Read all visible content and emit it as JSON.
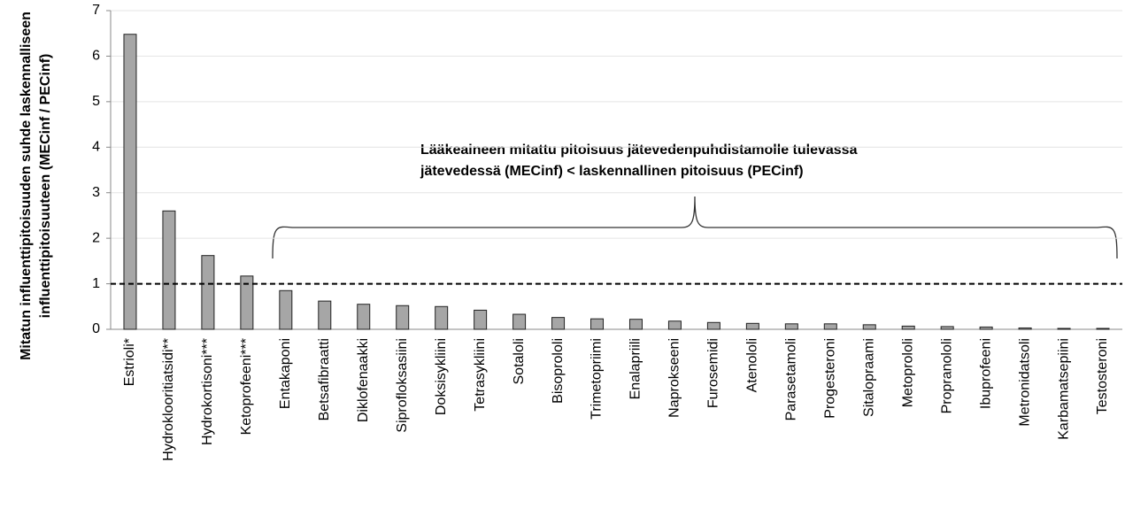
{
  "chart_data": {
    "type": "bar",
    "y_label": [
      "Mitatun influenttipitoisuuden suhde laskennalliseen",
      "influenttipitoisuuteen (MECinf / PECinf)"
    ],
    "annotation": [
      "Lääkeaineen mitattu pitoisuus jätevedenpuhdistamolle tulevassa",
      "jätevedessä (MECinf) < laskennallinen pitoisuus (PECinf)"
    ],
    "categories": [
      "Estrioli*",
      "Hydroklooritiatsidi**",
      "Hydrokortisoni***",
      "Ketoprofeeni***",
      "Entakaponi",
      "Betsafibraatti",
      "Diklofenaakki",
      "Siprofloksasiini",
      "Doksisykliini",
      "Tetrasykliini",
      "Sotaloli",
      "Bisoprololi",
      "Trimetopriimi",
      "Enalapriili",
      "Naprokseeni",
      "Furosemidi",
      "Atenololi",
      "Parasetamoli",
      "Progesteroni",
      "Sitalopraami",
      "Metoprololi",
      "Propranololi",
      "Ibuprofeeni",
      "Metronidatsoli",
      "Karbamatsepiini",
      "Testosteroni"
    ],
    "values": [
      6.48,
      2.6,
      1.62,
      1.17,
      0.85,
      0.62,
      0.55,
      0.52,
      0.5,
      0.42,
      0.33,
      0.26,
      0.23,
      0.22,
      0.18,
      0.15,
      0.13,
      0.12,
      0.12,
      0.1,
      0.07,
      0.06,
      0.05,
      0.03,
      0.02,
      0.02
    ],
    "color": "#a6a6a6",
    "reference_line": 1,
    "ylim": [
      0,
      7
    ],
    "yticks": [
      0,
      1,
      2,
      3,
      4,
      5,
      6,
      7
    ],
    "grid": true
  }
}
